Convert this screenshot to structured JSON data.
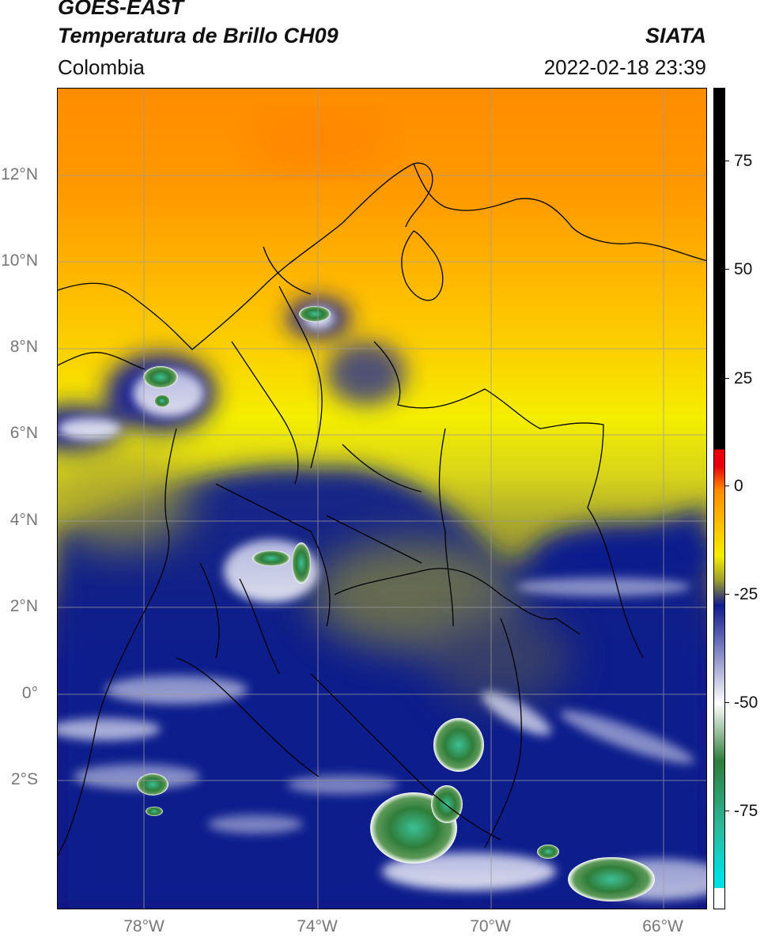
{
  "header": {
    "title_line1": "GOES-EAST",
    "title_line2": "Temperatura de Brillo CH09",
    "region": "Colombia",
    "source": "SIATA",
    "timestamp": "2022-02-18 23:39"
  },
  "map": {
    "lat_labels": [
      "12°N",
      "10°N",
      "8°N",
      "6°N",
      "4°N",
      "2°N",
      "0°",
      "2°S"
    ],
    "lon_labels": [
      "78°W",
      "74°W",
      "70°W",
      "66°W"
    ],
    "graticule_color": "#9a9a9a",
    "border_color": "#000000"
  },
  "colorbar": {
    "tick_labels": [
      "75",
      "50",
      "25",
      "0",
      "-25",
      "-50",
      "-75"
    ],
    "colors": {
      "hot": "#000000",
      "red": "#e8000b",
      "orange": "#ff8c00",
      "yellow": "#f4ee00",
      "olive": "#9c9c30",
      "navy": "#101a8c",
      "white": "#ffffff",
      "green": "#2f7d3a",
      "teal": "#2cb89a",
      "cyan": "#00e0e0"
    }
  }
}
